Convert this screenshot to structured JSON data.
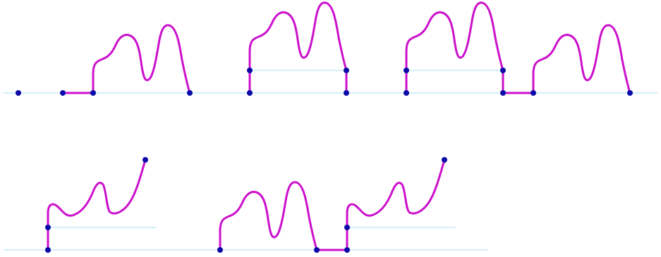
{
  "colors": {
    "curve": "#cc11cc",
    "point": "#0a0aa8",
    "guide": "#a8dcf2",
    "background": "#ffffff"
  },
  "diagram": {
    "rows": [
      {
        "panels": [
          "isolated-point",
          "offset-segment-and-curve",
          "lifted-curve",
          "lifted-curve-and-next-curve"
        ]
      },
      {
        "panels": [
          "rising-curve-lifted",
          "curve-joined-to-rising-curve"
        ]
      }
    ]
  }
}
